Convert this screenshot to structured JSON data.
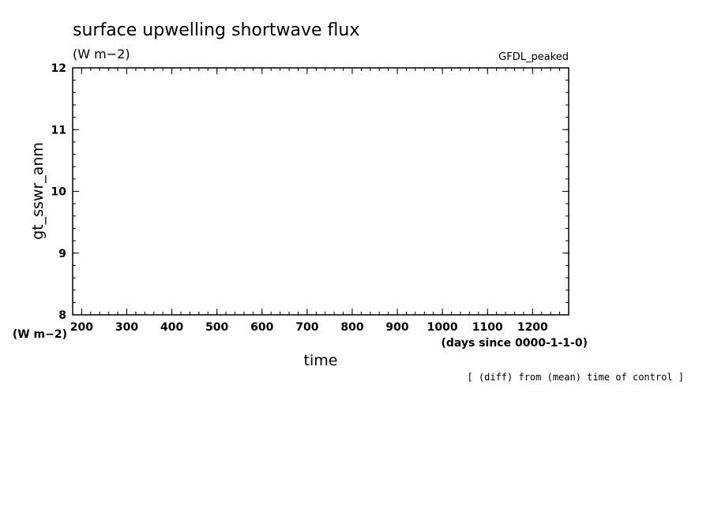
{
  "chart_data": {
    "type": "line",
    "title": "surface upwelling shortwave flux",
    "title_units": "(W m−2)",
    "dataset_label": "GFDL_peaked",
    "ylabel": "gt_sswr_anm",
    "ylabel_units": "(W m−2)",
    "xlabel": "time",
    "xlabel_units": "(days since 0000-1-1-0)",
    "note": "[ (diff) from (mean) time of control ]",
    "xlim": [
      180,
      1280
    ],
    "ylim": [
      8,
      12
    ],
    "x_ticks": [
      200,
      300,
      400,
      500,
      600,
      700,
      800,
      900,
      1000,
      1100,
      1200
    ],
    "y_ticks": [
      8,
      9,
      10,
      11,
      12
    ],
    "x_minor_step": 20,
    "y_minor_step": 0.2,
    "series": [],
    "grid": false,
    "legend": "none"
  }
}
